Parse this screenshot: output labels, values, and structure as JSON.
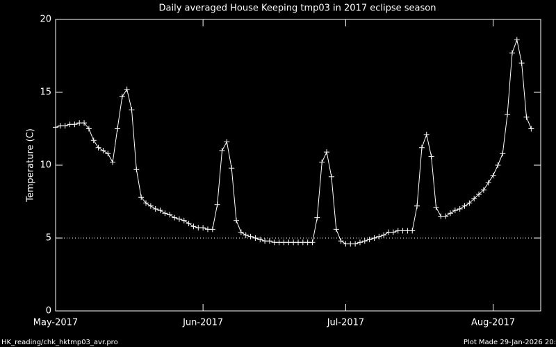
{
  "chart_data": {
    "type": "line",
    "title": "Daily averaged House Keeping tmp03 in 2017 eclipse season",
    "y_label": "Temperature (C)",
    "footer_left": "HK_reading/chk_hktmp03_avr.pro",
    "footer_right": "Plot Made 29-Jan-2026 20:",
    "color": "#ffffff",
    "marker": "plus",
    "hline": 5,
    "xlim": [
      0,
      102
    ],
    "xticks": [
      {
        "value": 0,
        "label": "May-2017"
      },
      {
        "value": 31,
        "label": "Jun-2017"
      },
      {
        "value": 61,
        "label": "Jul-2017"
      },
      {
        "value": 92,
        "label": "Aug-2017"
      }
    ],
    "ylim": [
      0,
      20
    ],
    "yticks": [
      0,
      5,
      10,
      15,
      20
    ],
    "x": [
      0,
      1,
      2,
      3,
      4,
      5,
      6,
      7,
      8,
      9,
      10,
      11,
      12,
      13,
      14,
      15,
      16,
      17,
      18,
      19,
      20,
      21,
      22,
      23,
      24,
      25,
      26,
      27,
      28,
      29,
      30,
      31,
      32,
      33,
      34,
      35,
      36,
      37,
      38,
      39,
      40,
      41,
      42,
      43,
      44,
      45,
      46,
      47,
      48,
      49,
      50,
      51,
      52,
      53,
      54,
      55,
      56,
      57,
      58,
      59,
      60,
      61,
      62,
      63,
      64,
      65,
      66,
      67,
      68,
      69,
      70,
      71,
      72,
      73,
      74,
      75,
      76,
      77,
      78,
      79,
      80,
      81,
      82,
      83,
      84,
      85,
      86,
      87,
      88,
      89,
      90,
      91,
      92,
      93,
      94,
      95,
      96,
      97,
      98,
      99,
      100
    ],
    "values": [
      12.6,
      12.7,
      12.7,
      12.8,
      12.8,
      12.9,
      12.9,
      12.5,
      11.7,
      11.2,
      11.0,
      10.8,
      10.2,
      12.5,
      14.7,
      15.2,
      13.8,
      9.7,
      7.8,
      7.4,
      7.2,
      7.0,
      6.9,
      6.7,
      6.6,
      6.4,
      6.3,
      6.2,
      6.0,
      5.8,
      5.7,
      5.7,
      5.6,
      5.6,
      7.3,
      11.0,
      11.6,
      9.8,
      6.2,
      5.4,
      5.2,
      5.1,
      5.0,
      4.9,
      4.8,
      4.8,
      4.7,
      4.7,
      4.7,
      4.7,
      4.7,
      4.7,
      4.7,
      4.7,
      4.7,
      6.4,
      10.2,
      10.9,
      9.2,
      5.6,
      4.8,
      4.6,
      4.6,
      4.6,
      4.7,
      4.8,
      4.9,
      5.0,
      5.1,
      5.2,
      5.4,
      5.4,
      5.5,
      5.5,
      5.5,
      5.5,
      7.2,
      11.2,
      12.1,
      10.6,
      7.1,
      6.5,
      6.5,
      6.7,
      6.9,
      7.0,
      7.2,
      7.4,
      7.7,
      8.0,
      8.3,
      8.8,
      9.3,
      10.0,
      10.8,
      13.5,
      17.7,
      18.6,
      17.0,
      13.3,
      12.5
    ]
  }
}
